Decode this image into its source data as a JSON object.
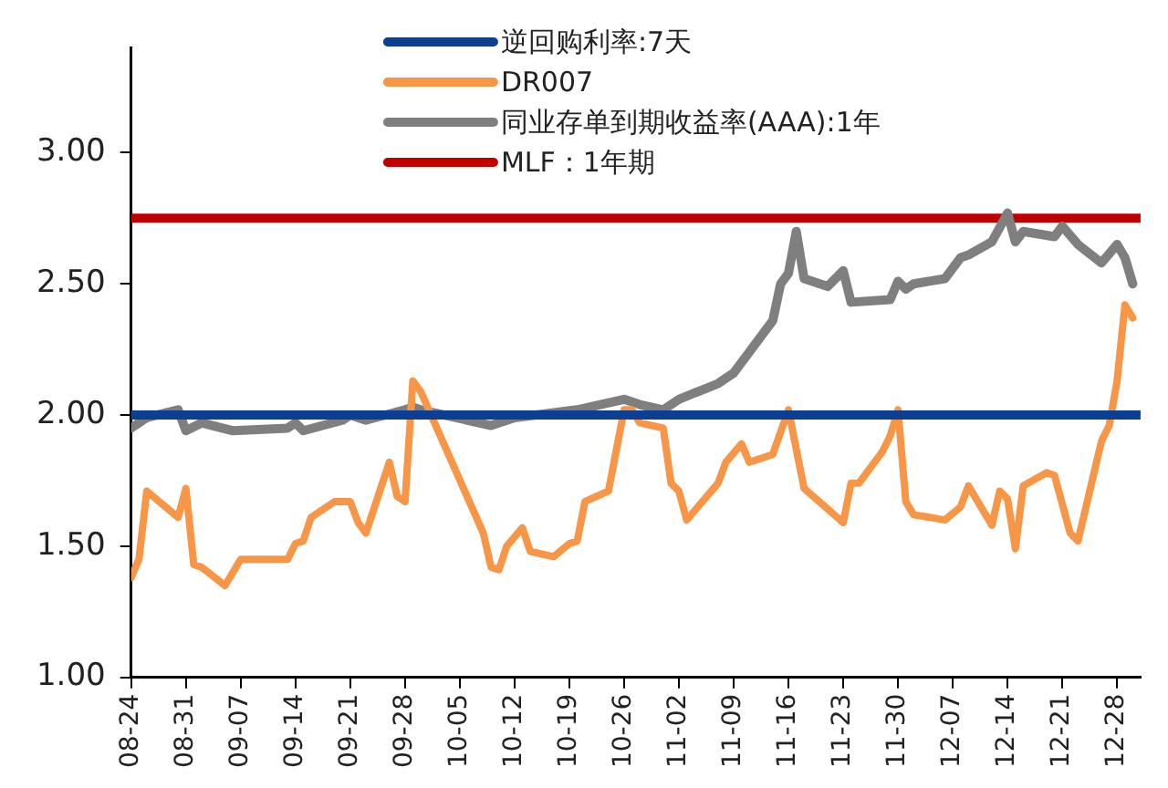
{
  "chart_data": {
    "type": "line",
    "legend": "top",
    "grid": false,
    "marker": "none",
    "line_style": "solid",
    "xlim": [
      "--08-24",
      "--12-31"
    ],
    "xticks": [
      {
        "value": "--08-24",
        "label": "08-24"
      },
      {
        "value": "--08-31",
        "label": "08-31"
      },
      {
        "value": "--09-07",
        "label": "09-07"
      },
      {
        "value": "--09-14",
        "label": "09-14"
      },
      {
        "value": "--09-21",
        "label": "09-21"
      },
      {
        "value": "--09-28",
        "label": "09-28"
      },
      {
        "value": "--10-05",
        "label": "10-05"
      },
      {
        "value": "--10-12",
        "label": "10-12"
      },
      {
        "value": "--10-19",
        "label": "10-19"
      },
      {
        "value": "--10-26",
        "label": "10-26"
      },
      {
        "value": "--11-02",
        "label": "11-02"
      },
      {
        "value": "--11-09",
        "label": "11-09"
      },
      {
        "value": "--11-16",
        "label": "11-16"
      },
      {
        "value": "--11-23",
        "label": "11-23"
      },
      {
        "value": "--11-30",
        "label": "11-30"
      },
      {
        "value": "--12-07",
        "label": "12-07"
      },
      {
        "value": "--12-14",
        "label": "12-14"
      },
      {
        "value": "--12-21",
        "label": "12-21"
      },
      {
        "value": "--12-28",
        "label": "12-28"
      }
    ],
    "ylim": [
      1,
      3.4
    ],
    "yticks": [
      {
        "value": 1,
        "label": "1.00"
      },
      {
        "value": 1.5,
        "label": "1.50"
      },
      {
        "value": 2,
        "label": "2.00"
      },
      {
        "value": 2.5,
        "label": "2.50"
      },
      {
        "value": 3,
        "label": "3.00"
      }
    ],
    "series": [
      {
        "name": "逆回购利率:7天",
        "color": "#0a3f94",
        "x": [
          "--08-24",
          "--12-31"
        ],
        "values": [
          2.0,
          2.0
        ]
      },
      {
        "name": "DR007",
        "color": "#f79646",
        "x": [
          "--08-24",
          "--08-25",
          "--08-26",
          "--08-30",
          "--08-31",
          "--09-01",
          "--09-02",
          "--09-05",
          "--09-07",
          "--09-09",
          "--09-13",
          "--09-14",
          "--09-15",
          "--09-16",
          "--09-19",
          "--09-21",
          "--09-22",
          "--09-23",
          "--09-26",
          "--09-27",
          "--09-28",
          "--09-29",
          "--09-30",
          "--10-08",
          "--10-09",
          "--10-10",
          "--10-11",
          "--10-13",
          "--10-14",
          "--10-17",
          "--10-19",
          "--10-20",
          "--10-21",
          "--10-24",
          "--10-26",
          "--10-27",
          "--10-28",
          "--10-31",
          "--11-01",
          "--11-02",
          "--11-03",
          "--11-07",
          "--11-08",
          "--11-10",
          "--11-11",
          "--11-14",
          "--11-16",
          "--11-18",
          "--11-23",
          "--11-24",
          "--11-25",
          "--11-28",
          "--11-29",
          "--11-30",
          "--12-01",
          "--12-02",
          "--12-06",
          "--12-08",
          "--12-09",
          "--12-12",
          "--12-13",
          "--12-14",
          "--12-15",
          "--12-16",
          "--12-19",
          "--12-20",
          "--12-22",
          "--12-23",
          "--12-26",
          "--12-27",
          "--12-28",
          "--12-29",
          "--12-30"
        ],
        "values": [
          1.38,
          1.45,
          1.71,
          1.61,
          1.72,
          1.43,
          1.42,
          1.35,
          1.45,
          1.45,
          1.45,
          1.51,
          1.52,
          1.61,
          1.67,
          1.67,
          1.59,
          1.55,
          1.82,
          1.69,
          1.67,
          2.13,
          2.09,
          1.55,
          1.42,
          1.41,
          1.5,
          1.57,
          1.48,
          1.46,
          1.51,
          1.52,
          1.67,
          1.71,
          2.02,
          2.02,
          1.97,
          1.95,
          1.74,
          1.71,
          1.6,
          1.74,
          1.82,
          1.89,
          1.82,
          1.85,
          2.02,
          1.72,
          1.59,
          1.74,
          1.74,
          1.86,
          1.92,
          2.02,
          1.67,
          1.62,
          1.6,
          1.65,
          1.73,
          1.58,
          1.71,
          1.68,
          1.49,
          1.73,
          1.78,
          1.77,
          1.55,
          1.52,
          1.9,
          1.96,
          2.13,
          2.42,
          2.37
        ]
      },
      {
        "name": "同业存单到期收益率(AAA):1年",
        "color": "#7f7f7f",
        "x": [
          "--08-24",
          "--08-26",
          "--08-30",
          "--08-31",
          "--09-02",
          "--09-06",
          "--09-13",
          "--09-14",
          "--09-15",
          "--09-20",
          "--09-21",
          "--09-23",
          "--09-28",
          "--09-29",
          "--09-30",
          "--10-09",
          "--10-12",
          "--10-20",
          "--10-26",
          "--10-28",
          "--10-31",
          "--11-02",
          "--11-07",
          "--11-09",
          "--11-14",
          "--11-15",
          "--11-16",
          "--11-17",
          "--11-18",
          "--11-21",
          "--11-23",
          "--11-24",
          "--11-29",
          "--11-30",
          "--12-01",
          "--12-02",
          "--12-06",
          "--12-08",
          "--12-09",
          "--12-12",
          "--12-14",
          "--12-15",
          "--12-16",
          "--12-20",
          "--12-21",
          "--12-23",
          "--12-26",
          "--12-28",
          "--12-29",
          "--12-30"
        ],
        "values": [
          1.95,
          1.99,
          2.02,
          1.94,
          1.97,
          1.94,
          1.95,
          1.97,
          1.94,
          1.98,
          2.0,
          1.98,
          2.02,
          2.03,
          2.02,
          1.96,
          1.99,
          2.02,
          2.06,
          2.04,
          2.02,
          2.06,
          2.12,
          2.16,
          2.36,
          2.5,
          2.54,
          2.7,
          2.52,
          2.49,
          2.55,
          2.43,
          2.44,
          2.51,
          2.48,
          2.5,
          2.52,
          2.6,
          2.61,
          2.66,
          2.77,
          2.66,
          2.7,
          2.68,
          2.72,
          2.65,
          2.58,
          2.65,
          2.6,
          2.5
        ]
      },
      {
        "name": "MLF：1年期",
        "color": "#c00000",
        "x": [
          "--08-24",
          "--12-31"
        ],
        "values": [
          2.75,
          2.75
        ]
      }
    ]
  }
}
